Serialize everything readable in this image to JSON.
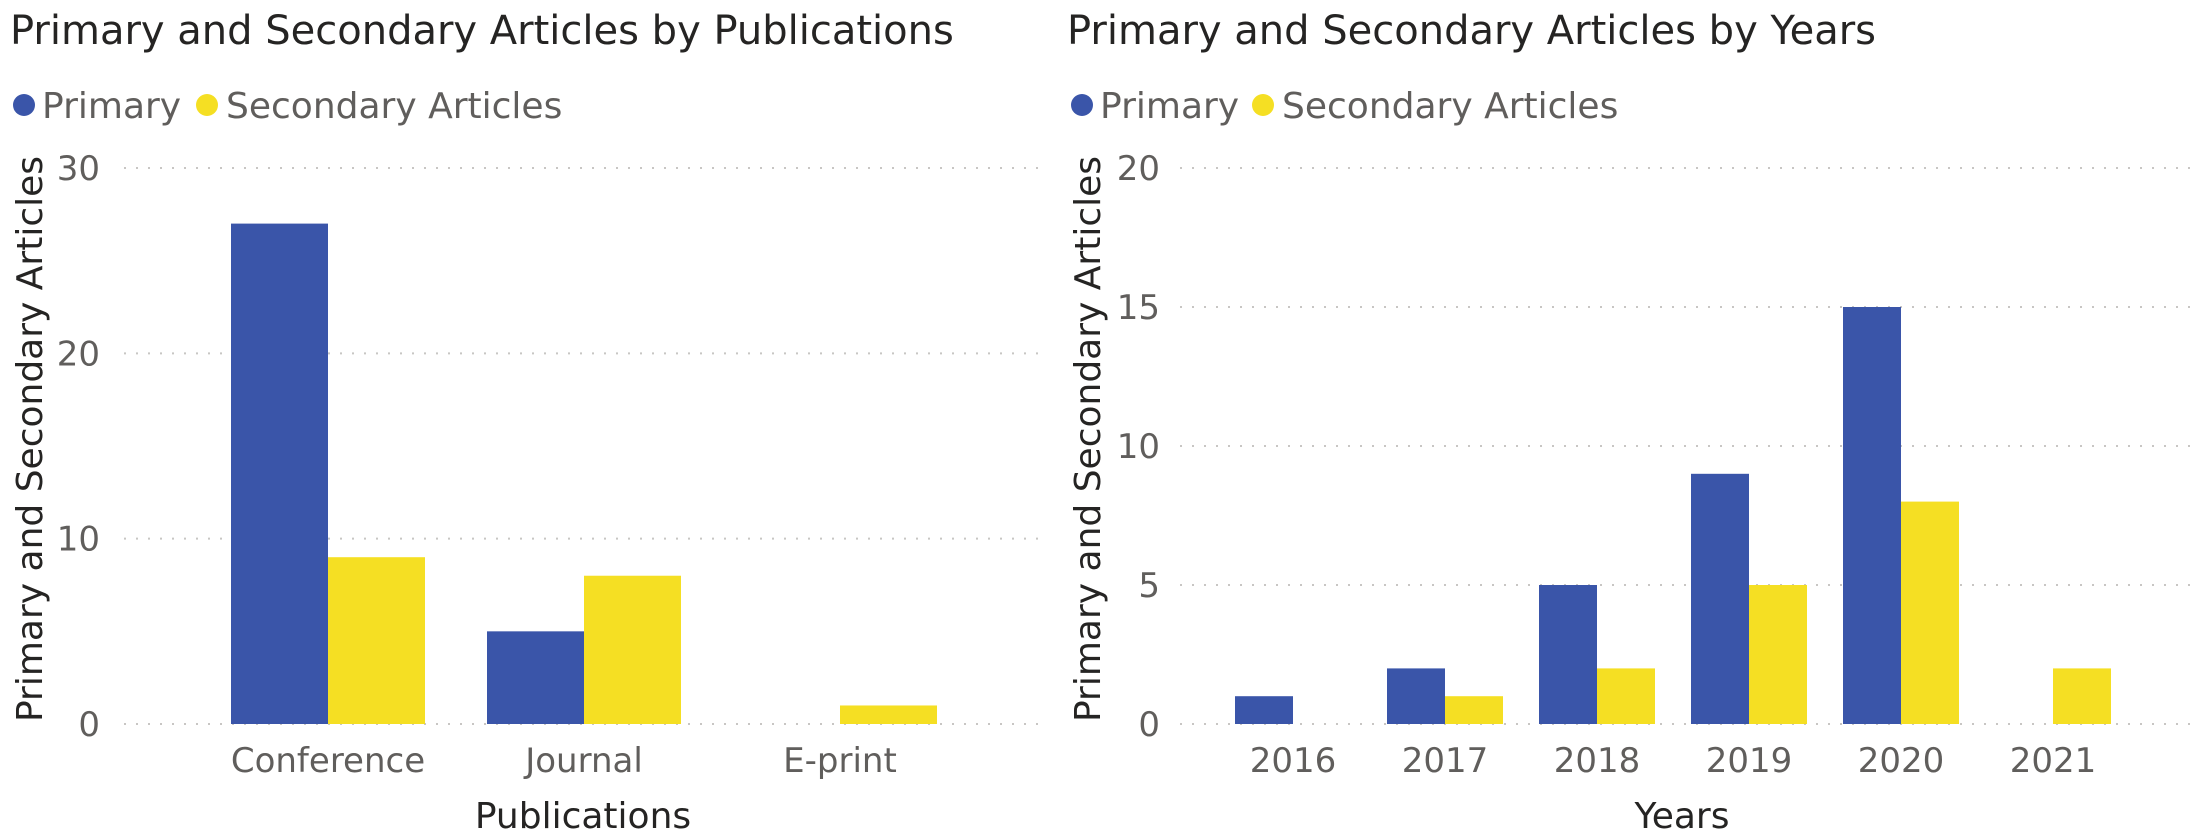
{
  "colors": {
    "primary": "#3a55a9",
    "secondary": "#f5df23"
  },
  "chart_data": [
    {
      "type": "bar",
      "title": "Primary and Secondary Articles by Publications",
      "legend_position": "top-left",
      "grid": true,
      "xlabel": "Publications",
      "ylabel": "Primary and Secondary Articles",
      "ylim": [
        0,
        30
      ],
      "yticks": [
        "0",
        "10",
        "20",
        "30"
      ],
      "categories": [
        "Conference",
        "Journal",
        "E-print"
      ],
      "series": [
        {
          "name": "Primary",
          "values": [
            27,
            5,
            0
          ]
        },
        {
          "name": "Secondary Articles",
          "values": [
            9,
            8,
            1
          ]
        }
      ]
    },
    {
      "type": "bar",
      "title": "Primary and Secondary Articles by Years",
      "legend_position": "top-left",
      "grid": true,
      "xlabel": "Years",
      "ylabel": "Primary and Secondary Articles",
      "ylim": [
        0,
        20
      ],
      "yticks": [
        "0",
        "5",
        "10",
        "15",
        "20"
      ],
      "categories": [
        "2016",
        "2017",
        "2018",
        "2019",
        "2020",
        "2021"
      ],
      "series": [
        {
          "name": "Primary",
          "values": [
            1,
            2,
            5,
            9,
            15,
            0
          ]
        },
        {
          "name": "Secondary Articles",
          "values": [
            0,
            1,
            2,
            5,
            8,
            2
          ]
        }
      ]
    }
  ]
}
